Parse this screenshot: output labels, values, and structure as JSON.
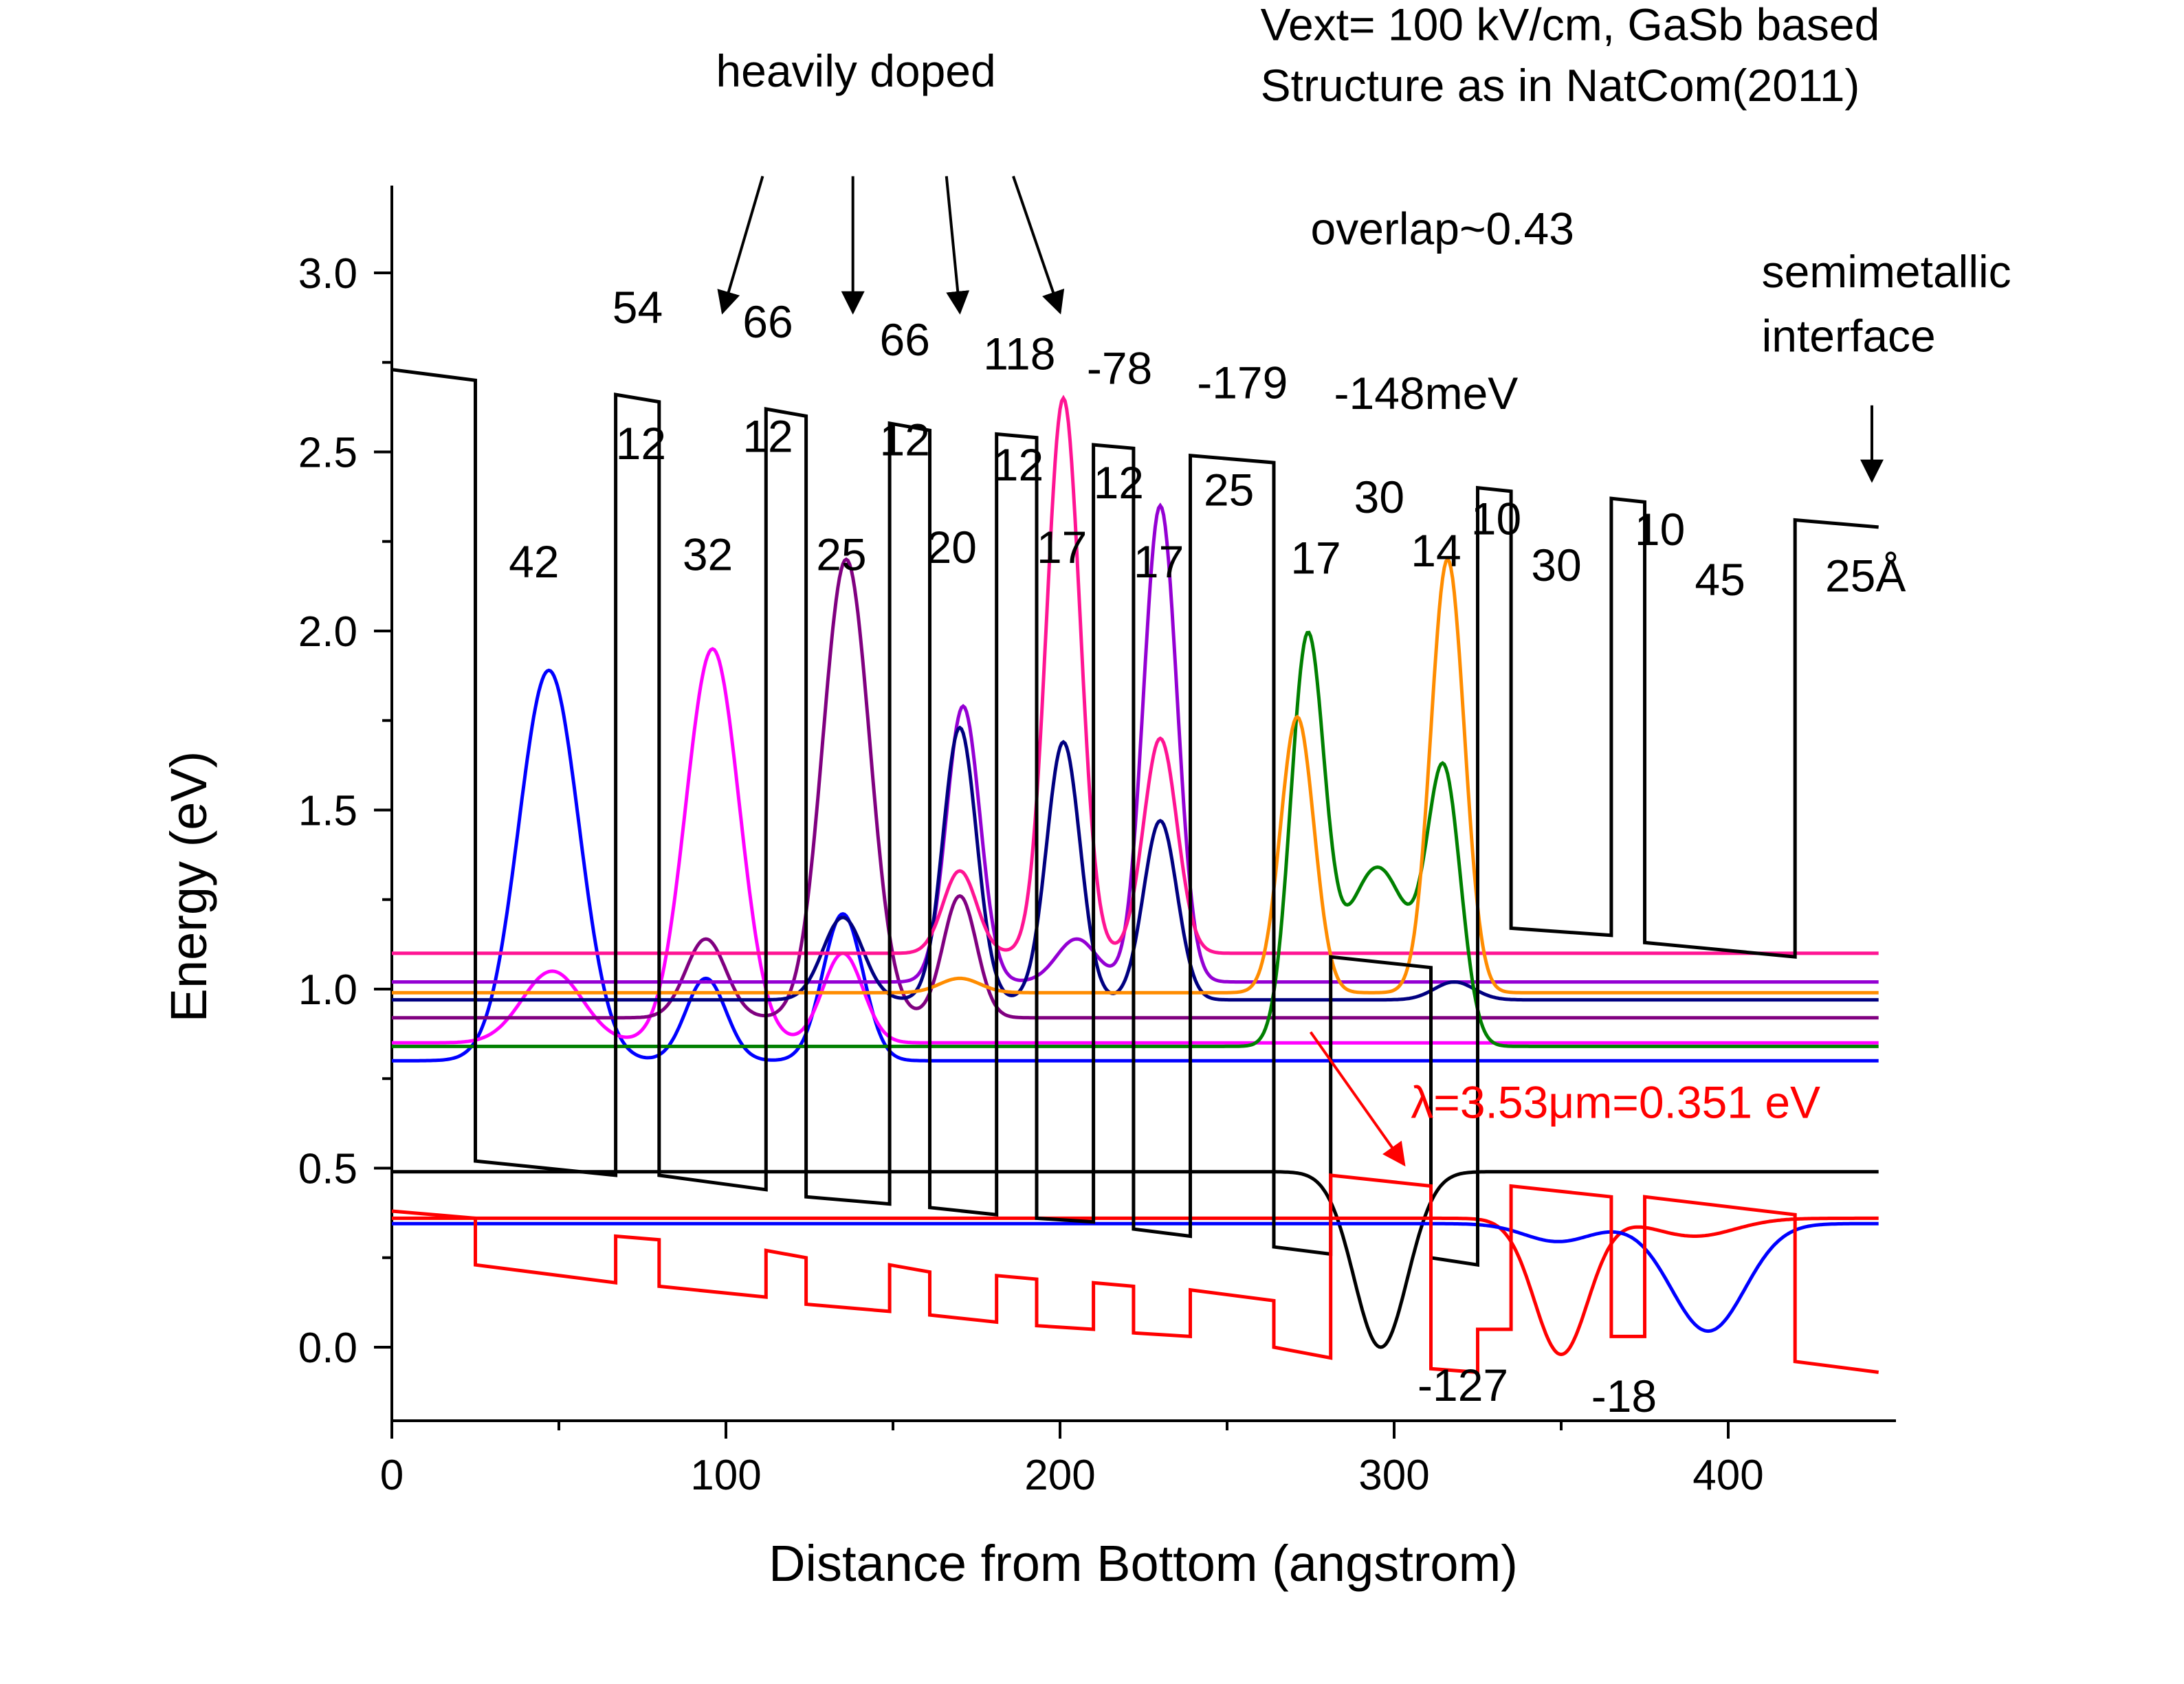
{
  "chart_data": {
    "type": "line",
    "xlabel": "Distance from Bottom (angstrom)",
    "ylabel": "Energy (eV)",
    "xlim": [
      0,
      455
    ],
    "ylim": [
      -0.2,
      3.3
    ],
    "x_ticks": [
      "0",
      "100",
      "200",
      "300",
      "400"
    ],
    "y_ticks": [
      "0.0",
      "0.5",
      "1.0",
      "1.5",
      "2.0",
      "2.5",
      "3.0"
    ],
    "grid": false,
    "legend": "none",
    "series": [
      {
        "role": "conduction-band",
        "color": "#000000",
        "points": [
          [
            0,
            2.73
          ],
          [
            25,
            2.7
          ],
          [
            25,
            0.52
          ],
          [
            67,
            0.48
          ],
          [
            67,
            2.66
          ],
          [
            80,
            2.64
          ],
          [
            80,
            0.48
          ],
          [
            112,
            0.44
          ],
          [
            112,
            2.62
          ],
          [
            124,
            2.6
          ],
          [
            124,
            0.42
          ],
          [
            149,
            0.4
          ],
          [
            149,
            2.58
          ],
          [
            161,
            2.56
          ],
          [
            161,
            0.39
          ],
          [
            181,
            0.37
          ],
          [
            181,
            2.55
          ],
          [
            193,
            2.54
          ],
          [
            193,
            0.36
          ],
          [
            210,
            0.35
          ],
          [
            210,
            2.52
          ],
          [
            222,
            2.51
          ],
          [
            222,
            0.33
          ],
          [
            239,
            0.31
          ],
          [
            239,
            2.49
          ],
          [
            264,
            2.47
          ],
          [
            264,
            0.28
          ],
          [
            281,
            0.26
          ],
          [
            281,
            1.09
          ],
          [
            311,
            1.06
          ],
          [
            311,
            0.25
          ],
          [
            325,
            0.23
          ],
          [
            325,
            2.4
          ],
          [
            335,
            2.39
          ],
          [
            335,
            1.17
          ],
          [
            365,
            1.15
          ],
          [
            365,
            2.37
          ],
          [
            375,
            2.36
          ],
          [
            375,
            1.13
          ],
          [
            420,
            1.09
          ],
          [
            420,
            2.31
          ],
          [
            445,
            2.29
          ]
        ]
      },
      {
        "role": "valence-band",
        "color": "#ff0000",
        "points": [
          [
            0,
            0.38
          ],
          [
            25,
            0.36
          ],
          [
            25,
            0.23
          ],
          [
            67,
            0.18
          ],
          [
            67,
            0.31
          ],
          [
            80,
            0.3
          ],
          [
            80,
            0.17
          ],
          [
            112,
            0.14
          ],
          [
            112,
            0.27
          ],
          [
            124,
            0.25
          ],
          [
            124,
            0.12
          ],
          [
            149,
            0.1
          ],
          [
            149,
            0.23
          ],
          [
            161,
            0.21
          ],
          [
            161,
            0.09
          ],
          [
            181,
            0.07
          ],
          [
            181,
            0.2
          ],
          [
            193,
            0.19
          ],
          [
            193,
            0.06
          ],
          [
            210,
            0.05
          ],
          [
            210,
            0.18
          ],
          [
            222,
            0.17
          ],
          [
            222,
            0.04
          ],
          [
            239,
            0.03
          ],
          [
            239,
            0.16
          ],
          [
            264,
            0.13
          ],
          [
            264,
            0.0
          ],
          [
            281,
            -0.03
          ],
          [
            281,
            0.48
          ],
          [
            311,
            0.45
          ],
          [
            311,
            -0.06
          ],
          [
            325,
            -0.07
          ],
          [
            325,
            0.05
          ],
          [
            335,
            0.05
          ],
          [
            335,
            0.45
          ],
          [
            365,
            0.42
          ],
          [
            365,
            0.03
          ],
          [
            375,
            0.03
          ],
          [
            375,
            0.42
          ],
          [
            420,
            0.37
          ],
          [
            420,
            -0.04
          ],
          [
            445,
            -0.07
          ]
        ]
      }
    ],
    "wavefunctions": [
      {
        "color": "#0000ff",
        "baseline": 0.8,
        "peaks": [
          [
            47,
            1.09,
            9
          ],
          [
            94,
            0.23,
            6
          ],
          [
            135,
            0.41,
            6
          ]
        ]
      },
      {
        "color": "#ff00ff",
        "baseline": 0.85,
        "peaks": [
          [
            96,
            1.1,
            8
          ],
          [
            48,
            0.2,
            9
          ],
          [
            135,
            0.25,
            6
          ]
        ]
      },
      {
        "color": "#800080",
        "baseline": 0.92,
        "peaks": [
          [
            136,
            1.28,
            7
          ],
          [
            94,
            0.22,
            6
          ],
          [
            170,
            0.34,
            5
          ]
        ]
      },
      {
        "color": "#9400d3",
        "baseline": 1.02,
        "peaks": [
          [
            171,
            0.77,
            5
          ],
          [
            230,
            1.33,
            5
          ],
          [
            205,
            0.12,
            6
          ]
        ]
      },
      {
        "color": "#000080",
        "baseline": 0.97,
        "peaks": [
          [
            170,
            0.76,
            5
          ],
          [
            201,
            0.72,
            5
          ],
          [
            230,
            0.5,
            5
          ],
          [
            135,
            0.23,
            6
          ],
          [
            318,
            0.05,
            6
          ]
        ]
      },
      {
        "color": "#ff1493",
        "baseline": 1.1,
        "peaks": [
          [
            201,
            1.55,
            5
          ],
          [
            230,
            0.6,
            5
          ],
          [
            170,
            0.23,
            5
          ]
        ]
      },
      {
        "color": "#008000",
        "baseline": 0.84,
        "peaks": [
          [
            274,
            1.1,
            5
          ],
          [
            295,
            0.5,
            10
          ],
          [
            315,
            0.72,
            5
          ]
        ]
      },
      {
        "color": "#ff8c00",
        "baseline": 0.99,
        "peaks": [
          [
            271,
            0.77,
            5
          ],
          [
            316,
            1.21,
            5
          ],
          [
            170,
            0.04,
            6
          ]
        ]
      },
      {
        "color": "#000000",
        "baseline": 0.49,
        "peaks": [
          [
            296,
            -0.49,
            8
          ]
        ]
      },
      {
        "color": "#ff0000",
        "baseline": 0.36,
        "peaks": [
          [
            350,
            -0.38,
            8
          ],
          [
            390,
            -0.05,
            12
          ]
        ]
      },
      {
        "color": "#0000ff",
        "baseline": 0.345,
        "peaks": [
          [
            349,
            -0.05,
            10
          ],
          [
            394,
            -0.3,
            11
          ]
        ]
      }
    ],
    "annotations": [
      {
        "text": "Vext= 100 kV/cm, GaSb based",
        "x": 260,
        "y": 3.65
      },
      {
        "text": "Structure as in NatCom(2011)",
        "x": 260,
        "y": 3.48
      },
      {
        "text": "heavily doped",
        "x": 97,
        "y": 3.52
      },
      {
        "text": "overlap~0.43",
        "x": 275,
        "y": 3.08
      },
      {
        "text": "semimetallic",
        "x": 410,
        "y": 2.96
      },
      {
        "text": "interface",
        "x": 410,
        "y": 2.78
      },
      {
        "text": "54",
        "x": 66,
        "y": 2.86
      },
      {
        "text": "66",
        "x": 105,
        "y": 2.82
      },
      {
        "text": "66",
        "x": 146,
        "y": 2.77
      },
      {
        "text": "118",
        "x": 177,
        "y": 2.73
      },
      {
        "text": "-78",
        "x": 208,
        "y": 2.69
      },
      {
        "text": "-179",
        "x": 241,
        "y": 2.65
      },
      {
        "text": "-148meV",
        "x": 282,
        "y": 2.62
      },
      {
        "text": "12",
        "x": 67,
        "y": 2.48
      },
      {
        "text": "12",
        "x": 105,
        "y": 2.5
      },
      {
        "text": "12",
        "x": 146,
        "y": 2.49
      },
      {
        "text": "12",
        "x": 180,
        "y": 2.42
      },
      {
        "text": "12",
        "x": 210,
        "y": 2.37
      },
      {
        "text": "25",
        "x": 243,
        "y": 2.35
      },
      {
        "text": "30",
        "x": 288,
        "y": 2.33
      },
      {
        "text": "10",
        "x": 323,
        "y": 2.27
      },
      {
        "text": "10",
        "x": 372,
        "y": 2.24
      },
      {
        "text": "42",
        "x": 35,
        "y": 2.15
      },
      {
        "text": "32",
        "x": 87,
        "y": 2.17
      },
      {
        "text": "25",
        "x": 127,
        "y": 2.17
      },
      {
        "text": "20",
        "x": 160,
        "y": 2.19
      },
      {
        "text": "17",
        "x": 193,
        "y": 2.19
      },
      {
        "text": "17",
        "x": 222,
        "y": 2.15
      },
      {
        "text": "17",
        "x": 269,
        "y": 2.16
      },
      {
        "text": "14",
        "x": 305,
        "y": 2.18
      },
      {
        "text": "30",
        "x": 341,
        "y": 2.14
      },
      {
        "text": "45",
        "x": 390,
        "y": 2.1
      },
      {
        "text": "25Å",
        "x": 429,
        "y": 2.11
      },
      {
        "text": "-127",
        "x": 307,
        "y": -0.15
      },
      {
        "text": "-18",
        "x": 359,
        "y": -0.18
      }
    ],
    "red_annotation": {
      "text": "λ=3.53μm=0.351 eV",
      "x": 305,
      "y": 0.64,
      "color": "#ff0000"
    },
    "arrows": [
      {
        "from": [
          111,
          3.27
        ],
        "to": [
          99,
          2.89
        ],
        "color": "#000000"
      },
      {
        "from": [
          138,
          3.27
        ],
        "to": [
          138,
          2.89
        ],
        "color": "#000000"
      },
      {
        "from": [
          166,
          3.27
        ],
        "to": [
          170,
          2.89
        ],
        "color": "#000000"
      },
      {
        "from": [
          186,
          3.27
        ],
        "to": [
          200,
          2.89
        ],
        "color": "#000000"
      },
      {
        "from": [
          443,
          2.63
        ],
        "to": [
          443,
          2.42
        ],
        "color": "#000000"
      },
      {
        "from": [
          275,
          0.88
        ],
        "to": [
          303,
          0.51
        ],
        "color": "#ff0000"
      }
    ]
  }
}
